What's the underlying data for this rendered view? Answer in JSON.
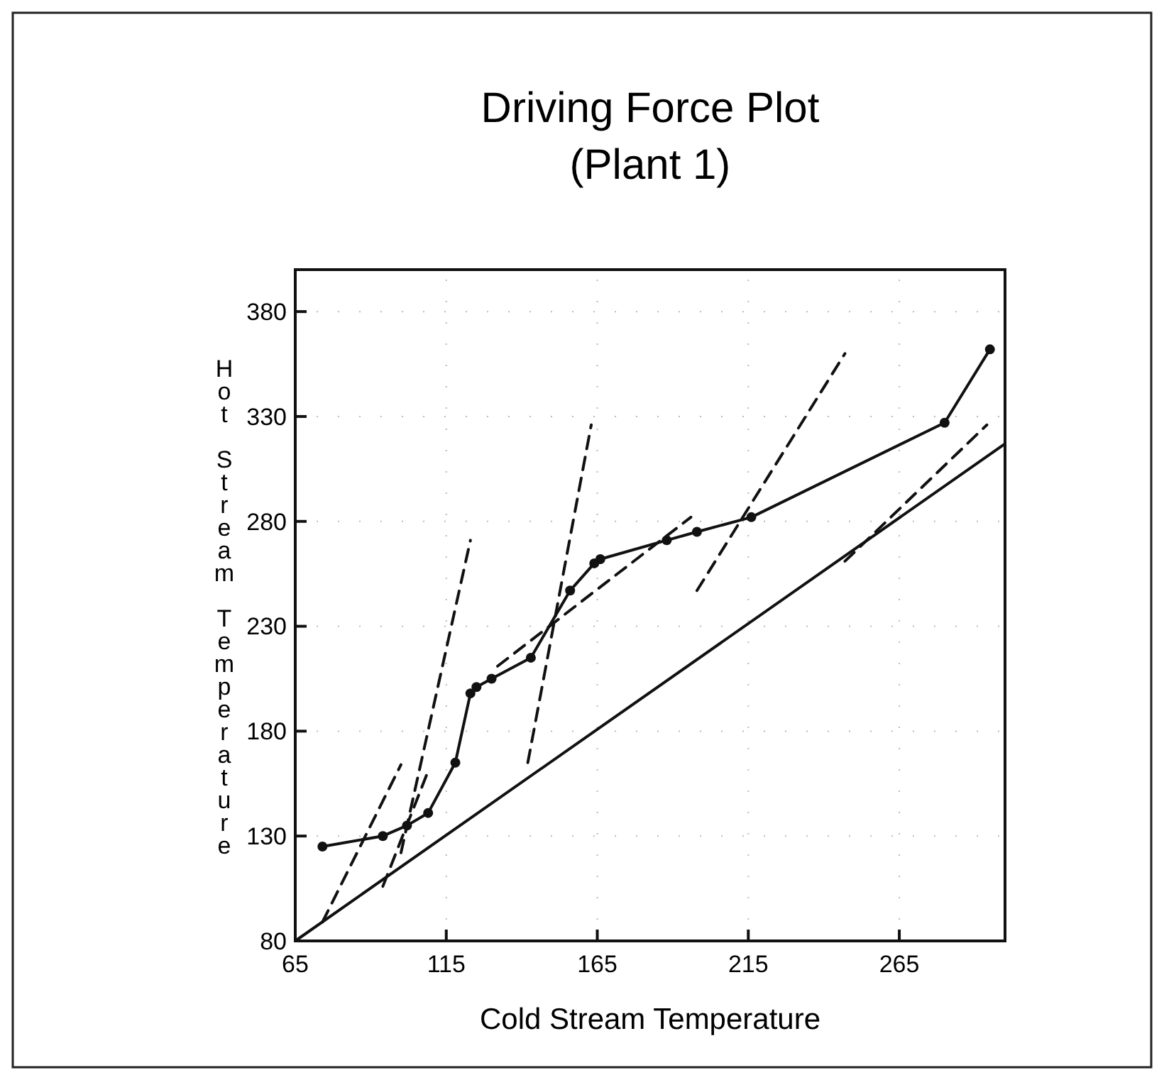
{
  "chart_data": {
    "type": "line",
    "title": "Driving Force Plot",
    "subtitle": "(Plant 1)",
    "xlabel": "Cold Stream Temperature",
    "ylabel": "Hot Stream Temperature",
    "xlim": [
      65,
      300
    ],
    "ylim": [
      80,
      400
    ],
    "xticks": [
      65,
      115,
      165,
      215,
      265
    ],
    "yticks": [
      80,
      130,
      180,
      230,
      280,
      330,
      380
    ],
    "grid": true,
    "series": [
      {
        "color": "#111111",
        "marker": "circle",
        "line_style": "solid",
        "x": [
          74,
          94,
          102,
          109,
          118,
          123,
          125,
          130,
          143,
          156,
          164,
          166,
          188,
          198,
          216,
          280,
          295
        ],
        "values": [
          125,
          130,
          135,
          141,
          165,
          198,
          201,
          205,
          215,
          247,
          260,
          262,
          271,
          275,
          282,
          327,
          362
        ]
      },
      {
        "color": "#111111",
        "marker": "none",
        "line_style": "solid",
        "x": [
          65,
          300
        ],
        "values": [
          80,
          317
        ]
      },
      {
        "color": "#111111",
        "marker": "none",
        "line_style": "dashed",
        "x": [
          74,
          100
        ],
        "values": [
          89,
          164
        ]
      },
      {
        "color": "#111111",
        "marker": "none",
        "line_style": "dashed",
        "x": [
          94,
          109
        ],
        "values": [
          106,
          161
        ]
      },
      {
        "color": "#111111",
        "marker": "none",
        "line_style": "dashed",
        "x": [
          100,
          123
        ],
        "values": [
          122,
          271
        ]
      },
      {
        "color": "#111111",
        "marker": "none",
        "line_style": "dashed",
        "x": [
          142,
          163
        ],
        "values": [
          165,
          326
        ]
      },
      {
        "color": "#111111",
        "marker": "none",
        "line_style": "dashed",
        "x": [
          132,
          196
        ],
        "values": [
          211,
          282
        ]
      },
      {
        "color": "#111111",
        "marker": "none",
        "line_style": "dashed",
        "x": [
          198,
          247
        ],
        "values": [
          247,
          360
        ]
      },
      {
        "color": "#111111",
        "marker": "none",
        "line_style": "dashed",
        "x": [
          247,
          294
        ],
        "values": [
          261,
          326
        ]
      }
    ]
  }
}
